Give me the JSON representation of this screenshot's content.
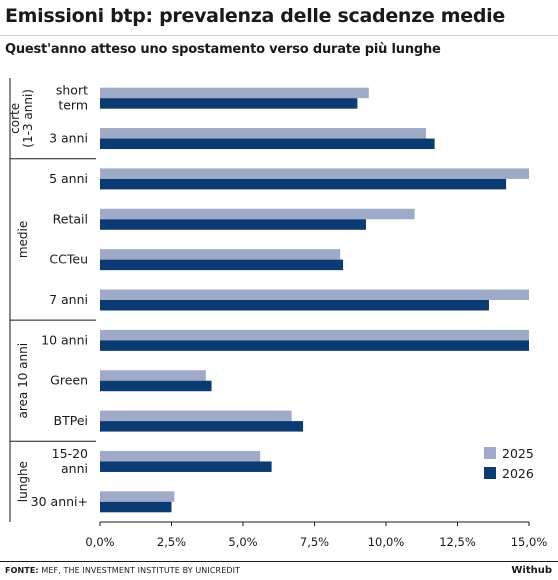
{
  "header": {
    "title": "Emissioni btp: prevalenza delle scadenze medie",
    "subtitle": "Quest'anno atteso uno spostamento verso durate più lunghe"
  },
  "footer": {
    "source_label": "FONTE:",
    "source_text": " MEF, THE INVESTMENT INSTITUTE BY UNICREDIT",
    "brand": "Withub"
  },
  "colors": {
    "2025": "#9eaac8",
    "2026": "#0c3a72"
  },
  "chart_data": {
    "type": "bar",
    "orientation": "horizontal",
    "categories": [
      [
        "short",
        "term"
      ],
      [
        "3 anni"
      ],
      [
        "5 anni"
      ],
      [
        "Retail"
      ],
      [
        "CCTeu"
      ],
      [
        "7 anni"
      ],
      [
        "10 anni"
      ],
      [
        "Green"
      ],
      [
        "BTPei"
      ],
      [
        "15-20",
        "anni"
      ],
      [
        "30 anni+"
      ]
    ],
    "groups": [
      {
        "label": [
          "corte",
          "(1-3 anni)"
        ],
        "start": 0,
        "end": 1
      },
      {
        "label": [
          "medie"
        ],
        "start": 2,
        "end": 5
      },
      {
        "label": [
          "area 10 anni"
        ],
        "start": 6,
        "end": 8
      },
      {
        "label": [
          "lunghe"
        ],
        "start": 9,
        "end": 10
      }
    ],
    "series": [
      {
        "name": "2025",
        "values": [
          9.4,
          11.4,
          15.0,
          11.0,
          8.4,
          15.0,
          15.0,
          3.7,
          6.7,
          5.6,
          2.6
        ]
      },
      {
        "name": "2026",
        "values": [
          9.0,
          11.7,
          14.2,
          9.3,
          8.5,
          13.6,
          15.0,
          3.9,
          7.1,
          6.0,
          2.5
        ]
      }
    ],
    "xlim": [
      0,
      15
    ],
    "xticks": [
      "0,0%",
      "2,5%",
      "5,0%",
      "7,5%",
      "10,0%",
      "12,5%",
      "15,0%"
    ],
    "legend_position": "bottom-right",
    "grid": false
  }
}
